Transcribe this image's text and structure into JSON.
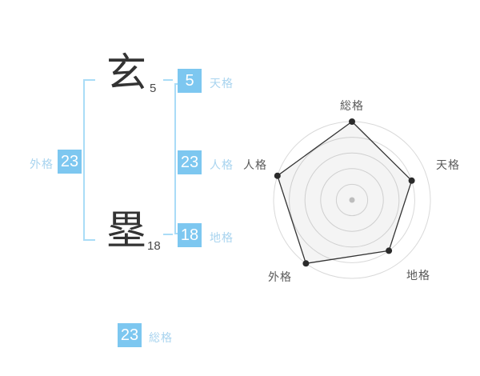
{
  "name_panel": {
    "characters": [
      {
        "char": "玄",
        "strokes": "5"
      },
      {
        "char": "塁",
        "strokes": "18"
      }
    ],
    "grids": {
      "tenkaku": {
        "value": "5",
        "label": "天格"
      },
      "jinkaku": {
        "value": "23",
        "label": "人格"
      },
      "chikaku": {
        "value": "18",
        "label": "地格"
      },
      "gaikaku": {
        "value": "23",
        "label": "外格"
      },
      "soukaku": {
        "value": "23",
        "label": "総格"
      }
    }
  },
  "colors": {
    "score_box_blue": "#7dc7f0",
    "label_blue": "#a9d4ef",
    "bracket_blue": "#aadcf7",
    "kanji_gray": "#333333",
    "axis_label_gray": "#595959"
  },
  "chart_data": {
    "type": "radar",
    "categories": [
      "総格",
      "天格",
      "地格",
      "外格",
      "人格"
    ],
    "values": [
      100,
      80,
      80,
      100,
      100
    ],
    "max": 100,
    "levels": 5,
    "grid": "circular-rings-on",
    "legend": "none",
    "start_angle_deg": 90,
    "direction": "clockwise",
    "title": "",
    "style": {
      "ring_color": "#d9d9d9",
      "polygon_fill": "rgba(0,0,0,0.045)",
      "polygon_stroke": "#333333",
      "point_color": "#2b2b2b",
      "center_dot_color": "#c6c6c6"
    }
  }
}
